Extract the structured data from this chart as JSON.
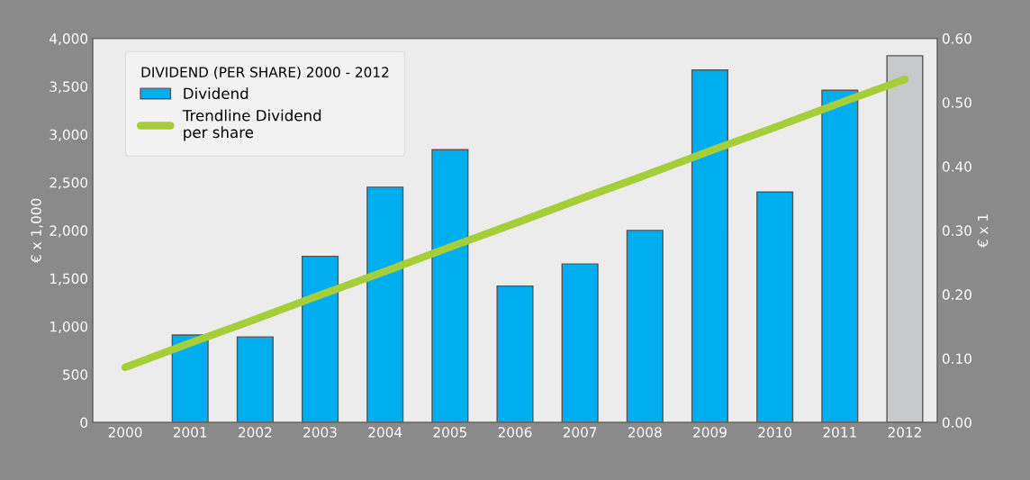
{
  "chart_data": {
    "type": "bar",
    "legend_title": "DIVIDEND (PER SHARE) 2000 - 2012",
    "ylabel": "€ x 1,000",
    "y2label": "€ x 1",
    "categories": [
      "2000",
      "2001",
      "2002",
      "2003",
      "2004",
      "2005",
      "2006",
      "2007",
      "2008",
      "2009",
      "2010",
      "2011",
      "2012"
    ],
    "series": [
      {
        "name": "Dividend",
        "color": "#00aeef",
        "colors": [
          "#00aeef",
          "#00aeef",
          "#00aeef",
          "#00aeef",
          "#00aeef",
          "#00aeef",
          "#00aeef",
          "#00aeef",
          "#00aeef",
          "#00aeef",
          "#00aeef",
          "#00aeef",
          "#c8c9cb"
        ],
        "values": [
          null,
          910,
          890,
          1730,
          2450,
          2840,
          1420,
          1650,
          2000,
          3670,
          2400,
          3460,
          3820
        ]
      },
      {
        "name": "Trendline Dividend\nper share",
        "type": "line",
        "axis": "y2",
        "color": "#a6ce39",
        "values": [
          0.086,
          0.124,
          0.161,
          0.199,
          0.236,
          0.274,
          0.311,
          0.349,
          0.386,
          0.424,
          0.461,
          0.499,
          0.536
        ]
      }
    ],
    "ylim": [
      0,
      4000
    ],
    "yticks": [
      {
        "value": 0,
        "label": "0"
      },
      {
        "value": 500,
        "label": "500"
      },
      {
        "value": 1000,
        "label": "1,000"
      },
      {
        "value": 1500,
        "label": "1,500"
      },
      {
        "value": 2000,
        "label": "2,000"
      },
      {
        "value": 2500,
        "label": "2,500"
      },
      {
        "value": 3000,
        "label": "3,000"
      },
      {
        "value": 3500,
        "label": "3,500"
      },
      {
        "value": 4000,
        "label": "4,000"
      }
    ],
    "y2lim": [
      0,
      0.6
    ],
    "y2ticks": [
      {
        "value": 0,
        "label": "0.00"
      },
      {
        "value": 0.1,
        "label": "0.10"
      },
      {
        "value": 0.2,
        "label": "0.20"
      },
      {
        "value": 0.3,
        "label": "0.30"
      },
      {
        "value": 0.4,
        "label": "0.40"
      },
      {
        "value": 0.5,
        "label": "0.50"
      },
      {
        "value": 0.6,
        "label": "0.60"
      }
    ],
    "legend": "top left",
    "grid": false
  }
}
